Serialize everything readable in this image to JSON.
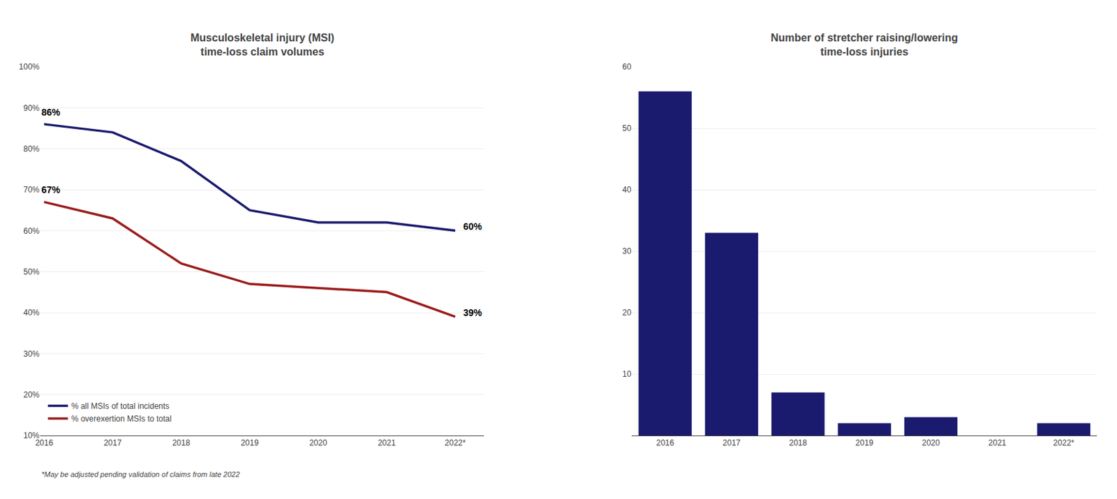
{
  "chart_data": [
    {
      "type": "line",
      "title": "Musculoskeletal injury (MSI)\ntime-loss claim volumes",
      "categories": [
        "2016",
        "2017",
        "2018",
        "2019",
        "2020",
        "2021",
        "2022*"
      ],
      "series": [
        {
          "name": "% all MSIs of total incidents",
          "color": "#1a1a6e",
          "values": [
            86,
            84,
            77,
            65,
            62,
            62,
            60
          ]
        },
        {
          "name": "% overexertion MSIs to total",
          "color": "#9b1c1c",
          "values": [
            67,
            63,
            52,
            47,
            46,
            45,
            39
          ]
        }
      ],
      "ylim": [
        10,
        100
      ],
      "yticks": [
        {
          "value": 10,
          "label": "10%"
        },
        {
          "value": 20,
          "label": "20%"
        },
        {
          "value": 30,
          "label": "30%"
        },
        {
          "value": 40,
          "label": "40%"
        },
        {
          "value": 50,
          "label": "50%"
        },
        {
          "value": 60,
          "label": "60%"
        },
        {
          "value": 70,
          "label": "70%"
        },
        {
          "value": 80,
          "label": "80%"
        },
        {
          "value": 90,
          "label": "90%"
        },
        {
          "value": 100,
          "label": "100%"
        }
      ],
      "grid": true,
      "legend": "lower left",
      "annotations": [
        {
          "x": "2016",
          "y": 86,
          "text": "86%"
        },
        {
          "x": "2016",
          "y": 67,
          "text": "67%"
        },
        {
          "x": "2022*",
          "y": 60,
          "text": "60%"
        },
        {
          "x": "2022*",
          "y": 39,
          "text": "39%"
        },
        {
          "text": "*May be adjusted pending validation of claims from late 2022"
        }
      ]
    },
    {
      "type": "bar",
      "title": "Number of stretcher raising/lowering\ntime-loss injuries",
      "categories": [
        "2016",
        "2017",
        "2018",
        "2019",
        "2020",
        "2021",
        "2022*"
      ],
      "values": [
        56,
        33,
        7,
        2,
        3,
        0,
        2
      ],
      "color": "#1a1a6e",
      "ylim": [
        0,
        60
      ],
      "yticks": [
        10,
        20,
        30,
        40,
        50,
        60
      ],
      "grid": true
    }
  ]
}
